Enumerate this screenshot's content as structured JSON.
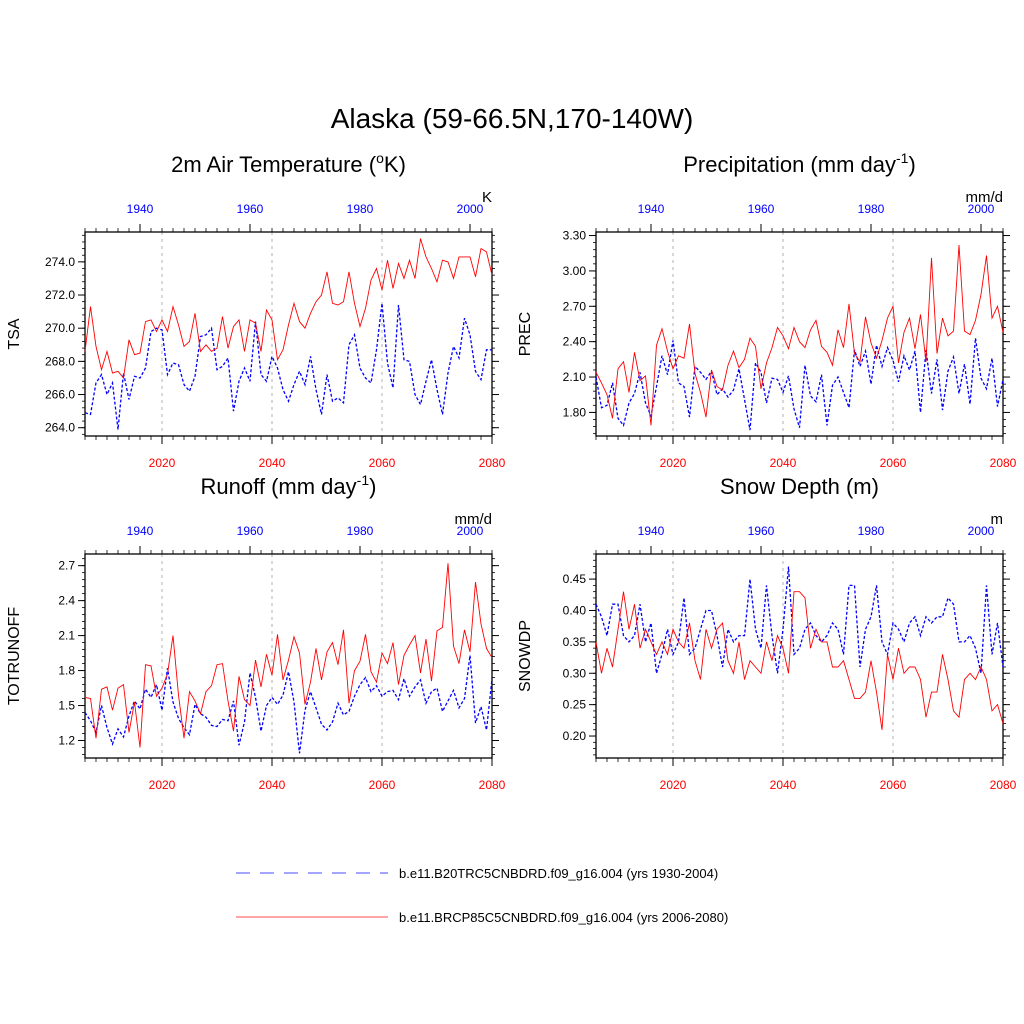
{
  "title": "Alaska (59-66.5N,170-140W)",
  "colors": {
    "historical": "#0000ff",
    "future": "#ff0000",
    "grid": "#b0b0b0"
  },
  "legend": [
    {
      "label": "b.e11.B20TRC5CNBDRD.f09_g16.004 (yrs 1930-2004)",
      "color": "#0000ff",
      "style": "dashed"
    },
    {
      "label": "b.e11.BRCP85C5CNBDRD.f09_g16.004 (yrs 2006-2080)",
      "color": "#ff0000",
      "style": "solid"
    }
  ],
  "chart_data": [
    {
      "type": "line",
      "title": "2m Air Temperature (",
      "title_sup": "o",
      "title_tail": "K)",
      "ylabel": "TSA",
      "units": "K",
      "ylim": [
        263.5,
        275.8
      ],
      "yticks": [
        264.0,
        266.0,
        268.0,
        270.0,
        272.0,
        274.0
      ],
      "ytick_labels": [
        "264.0",
        "266.0",
        "268.0",
        "270.0",
        "272.0",
        "274.0"
      ],
      "x_bottom": {
        "range": [
          2006,
          2080
        ],
        "ticks": [
          2020,
          2040,
          2060,
          2080
        ]
      },
      "x_top": {
        "range": [
          1930,
          2004
        ],
        "ticks": [
          1940,
          1960,
          1980,
          2000
        ]
      },
      "series": [
        {
          "name": "b.e11.B20TRC5CNBDRD.f09_g16.004 (yrs 1930-2004)",
          "key": "historical",
          "values": [
            264.9,
            264.8,
            266.7,
            267.2,
            266.0,
            266.7,
            263.9,
            267.3,
            265.7,
            267.1,
            267.0,
            267.6,
            269.8,
            270.0,
            269.9,
            267.2,
            267.9,
            267.8,
            266.6,
            266.2,
            267.1,
            269.5,
            269.6,
            270.0,
            267.5,
            267.7,
            268.2,
            265.0,
            266.8,
            267.6,
            266.8,
            270.4,
            267.2,
            266.8,
            268.3,
            267.6,
            266.3,
            265.6,
            266.6,
            267.4,
            266.6,
            268.3,
            266.3,
            264.8,
            267.2,
            265.6,
            265.8,
            265.5,
            269.0,
            269.6,
            267.6,
            267.0,
            266.7,
            268.7,
            271.5,
            267.9,
            266.4,
            271.4,
            268.1,
            268.0,
            266.0,
            265.4,
            266.8,
            268.1,
            266.3,
            264.8,
            267.3,
            268.9,
            268.2,
            270.6,
            269.6,
            267.4,
            266.9,
            268.7,
            268.7
          ]
        },
        {
          "name": "b.e11.BRCP85C5CNBDRD.f09_g16.004 (yrs 2006-2080)",
          "key": "future",
          "values": [
            268.6,
            271.3,
            268.9,
            267.5,
            268.6,
            267.3,
            267.4,
            267.0,
            269.3,
            268.4,
            268.5,
            270.4,
            270.5,
            269.8,
            270.5,
            269.8,
            271.3,
            270.2,
            268.9,
            269.2,
            270.9,
            268.6,
            269.0,
            268.6,
            268.8,
            270.7,
            268.8,
            270.1,
            270.5,
            268.6,
            270.5,
            270.3,
            268.6,
            271.1,
            270.5,
            268.1,
            268.7,
            270.2,
            271.5,
            270.4,
            270.0,
            270.9,
            271.6,
            272.0,
            273.4,
            271.5,
            271.4,
            271.6,
            273.4,
            271.5,
            270.1,
            271.2,
            272.9,
            273.6,
            272.3,
            274.1,
            272.4,
            273.9,
            273.0,
            274.1,
            273.0,
            275.4,
            274.3,
            273.6,
            272.8,
            274.1,
            274.0,
            273.0,
            274.3,
            274.3,
            274.3,
            273.1,
            274.8,
            274.6,
            273.2
          ]
        }
      ]
    },
    {
      "type": "line",
      "title": "Precipitation (mm day",
      "title_sup": "-1",
      "title_tail": ")",
      "ylabel": "PREC",
      "units": "mm/d",
      "ylim": [
        1.6,
        3.33
      ],
      "yticks": [
        1.8,
        2.1,
        2.4,
        2.7,
        3.0,
        3.3
      ],
      "ytick_labels": [
        "1.80",
        "2.10",
        "2.40",
        "2.70",
        "3.00",
        "3.30"
      ],
      "x_bottom": {
        "range": [
          2006,
          2080
        ],
        "ticks": [
          2020,
          2040,
          2060,
          2080
        ]
      },
      "x_top": {
        "range": [
          1930,
          2004
        ],
        "ticks": [
          1940,
          1960,
          1980,
          2000
        ]
      },
      "series": [
        {
          "name": "b.e11.B20TRC5CNBDRD.f09_g16.004 (yrs 1930-2004)",
          "key": "historical",
          "values": [
            2.1,
            1.84,
            1.86,
            2.05,
            1.75,
            1.69,
            1.88,
            1.96,
            2.14,
            1.88,
            1.77,
            2.02,
            2.28,
            2.12,
            2.41,
            2.05,
            2.02,
            1.76,
            2.19,
            2.14,
            2.08,
            2.15,
            1.95,
            2.0,
            1.93,
            1.99,
            2.17,
            1.91,
            1.65,
            2.22,
            2.14,
            1.88,
            2.09,
            2.08,
            1.97,
            2.11,
            1.83,
            1.67,
            2.2,
            1.94,
            1.89,
            2.12,
            1.69,
            2.03,
            2.1,
            1.97,
            1.84,
            2.33,
            2.19,
            2.32,
            2.04,
            2.37,
            2.19,
            2.35,
            2.24,
            2.06,
            2.28,
            2.16,
            2.32,
            1.8,
            2.33,
            1.96,
            2.25,
            1.82,
            2.15,
            2.27,
            1.96,
            2.21,
            1.87,
            2.43,
            2.09,
            2.0,
            2.26,
            1.85,
            2.08
          ]
        },
        {
          "name": "b.e11.BRCP85C5CNBDRD.f09_g16.004 (yrs 2006-2080)",
          "key": "future",
          "values": [
            2.14,
            2.05,
            1.95,
            1.75,
            2.17,
            2.23,
            1.97,
            2.31,
            2.07,
            2.11,
            1.69,
            2.37,
            2.51,
            2.32,
            2.17,
            2.28,
            2.26,
            2.55,
            2.13,
            1.97,
            1.76,
            2.16,
            2.02,
            1.99,
            2.2,
            2.32,
            2.18,
            2.25,
            2.43,
            2.36,
            2.0,
            2.22,
            2.35,
            2.52,
            2.45,
            2.34,
            2.52,
            2.4,
            2.35,
            2.5,
            2.58,
            2.36,
            2.31,
            2.2,
            2.5,
            2.35,
            2.72,
            2.3,
            2.23,
            2.61,
            2.39,
            2.26,
            2.41,
            2.6,
            2.7,
            2.22,
            2.48,
            2.6,
            2.34,
            2.63,
            2.23,
            3.11,
            2.3,
            2.6,
            2.45,
            2.49,
            3.22,
            2.49,
            2.46,
            2.58,
            2.8,
            3.13,
            2.6,
            2.7,
            2.48
          ]
        }
      ]
    },
    {
      "type": "line",
      "title": "Runoff (mm day",
      "title_sup": "-1",
      "title_tail": ")",
      "ylabel": "TOTRUNOFF",
      "units": "mm/d",
      "ylim": [
        1.05,
        2.8
      ],
      "yticks": [
        1.2,
        1.5,
        1.8,
        2.1,
        2.4,
        2.7
      ],
      "ytick_labels": [
        "1.2",
        "1.5",
        "1.8",
        "2.1",
        "2.4",
        "2.7"
      ],
      "x_bottom": {
        "range": [
          2006,
          2080
        ],
        "ticks": [
          2020,
          2040,
          2060,
          2080
        ]
      },
      "x_top": {
        "range": [
          1930,
          2004
        ],
        "ticks": [
          1940,
          1960,
          1980,
          2000
        ]
      },
      "series": [
        {
          "name": "b.e11.B20TRC5CNBDRD.f09_g16.004 (yrs 1930-2004)",
          "key": "historical",
          "values": [
            1.44,
            1.37,
            1.27,
            1.5,
            1.31,
            1.17,
            1.3,
            1.23,
            1.41,
            1.54,
            1.47,
            1.64,
            1.57,
            1.68,
            1.46,
            1.82,
            1.53,
            1.39,
            1.31,
            1.25,
            1.51,
            1.43,
            1.4,
            1.33,
            1.32,
            1.38,
            1.37,
            1.54,
            1.16,
            1.36,
            1.78,
            1.57,
            1.28,
            1.5,
            1.57,
            1.51,
            1.59,
            1.79,
            1.53,
            1.09,
            1.46,
            1.62,
            1.48,
            1.34,
            1.29,
            1.36,
            1.52,
            1.42,
            1.45,
            1.58,
            1.68,
            1.74,
            1.62,
            1.67,
            1.58,
            1.62,
            1.63,
            1.55,
            1.73,
            1.58,
            1.66,
            1.72,
            1.52,
            1.62,
            1.65,
            1.45,
            1.54,
            1.63,
            1.48,
            1.56,
            1.93,
            1.35,
            1.49,
            1.29,
            1.73
          ]
        },
        {
          "name": "b.e11.BRCP85C5CNBDRD.f09_g16.004 (yrs 2006-2080)",
          "key": "future",
          "values": [
            1.57,
            1.56,
            1.22,
            1.64,
            1.66,
            1.46,
            1.65,
            1.68,
            1.27,
            1.53,
            1.14,
            1.85,
            1.84,
            1.58,
            1.65,
            1.77,
            2.1,
            1.59,
            1.22,
            1.62,
            1.54,
            1.43,
            1.62,
            1.67,
            1.85,
            1.86,
            1.54,
            1.28,
            1.75,
            1.55,
            1.5,
            1.89,
            1.66,
            1.94,
            1.76,
            2.11,
            1.72,
            1.89,
            2.09,
            1.95,
            1.51,
            1.7,
            1.99,
            1.72,
            1.96,
            2.04,
            1.85,
            2.15,
            1.52,
            1.8,
            1.88,
            2.11,
            1.79,
            1.7,
            1.95,
            1.86,
            2.04,
            1.68,
            1.93,
            2.02,
            2.1,
            1.78,
            2.07,
            1.71,
            2.14,
            2.17,
            2.72,
            2.01,
            1.86,
            2.15,
            1.96,
            2.56,
            2.2,
            1.99,
            1.91
          ]
        }
      ]
    },
    {
      "type": "line",
      "title": "Snow Depth (m)",
      "title_sup": "",
      "title_tail": "",
      "ylabel": "SNOWDP",
      "units": "m",
      "ylim": [
        0.165,
        0.49
      ],
      "yticks": [
        0.2,
        0.25,
        0.3,
        0.35,
        0.4,
        0.45
      ],
      "ytick_labels": [
        "0.20",
        "0.25",
        "0.30",
        "0.35",
        "0.40",
        "0.45"
      ],
      "x_bottom": {
        "range": [
          2006,
          2080
        ],
        "ticks": [
          2020,
          2040,
          2060,
          2080
        ]
      },
      "x_top": {
        "range": [
          1930,
          2004
        ],
        "ticks": [
          1940,
          1960,
          1980,
          2000
        ]
      },
      "series": [
        {
          "name": "b.e11.B20TRC5CNBDRD.f09_g16.004 (yrs 1930-2004)",
          "key": "historical",
          "values": [
            0.41,
            0.39,
            0.36,
            0.41,
            0.41,
            0.36,
            0.35,
            0.36,
            0.41,
            0.35,
            0.38,
            0.3,
            0.33,
            0.37,
            0.33,
            0.35,
            0.42,
            0.33,
            0.34,
            0.37,
            0.4,
            0.4,
            0.36,
            0.31,
            0.37,
            0.35,
            0.36,
            0.36,
            0.45,
            0.37,
            0.34,
            0.44,
            0.36,
            0.3,
            0.37,
            0.47,
            0.33,
            0.34,
            0.37,
            0.38,
            0.36,
            0.35,
            0.36,
            0.38,
            0.37,
            0.33,
            0.44,
            0.44,
            0.31,
            0.37,
            0.39,
            0.44,
            0.35,
            0.33,
            0.38,
            0.37,
            0.35,
            0.38,
            0.39,
            0.36,
            0.39,
            0.38,
            0.39,
            0.39,
            0.42,
            0.41,
            0.35,
            0.35,
            0.36,
            0.34,
            0.3,
            0.44,
            0.33,
            0.38,
            0.31
          ]
        },
        {
          "name": "b.e11.BRCP85C5CNBDRD.f09_g16.004 (yrs 2006-2080)",
          "key": "future",
          "values": [
            0.35,
            0.3,
            0.34,
            0.31,
            0.37,
            0.43,
            0.37,
            0.41,
            0.34,
            0.37,
            0.35,
            0.33,
            0.35,
            0.33,
            0.37,
            0.35,
            0.34,
            0.38,
            0.32,
            0.29,
            0.37,
            0.34,
            0.37,
            0.38,
            0.32,
            0.3,
            0.35,
            0.29,
            0.32,
            0.31,
            0.3,
            0.35,
            0.32,
            0.36,
            0.34,
            0.3,
            0.43,
            0.43,
            0.42,
            0.34,
            0.37,
            0.35,
            0.35,
            0.31,
            0.31,
            0.32,
            0.29,
            0.26,
            0.26,
            0.27,
            0.32,
            0.27,
            0.21,
            0.33,
            0.29,
            0.34,
            0.3,
            0.31,
            0.31,
            0.29,
            0.23,
            0.27,
            0.27,
            0.33,
            0.29,
            0.24,
            0.23,
            0.29,
            0.3,
            0.29,
            0.31,
            0.29,
            0.24,
            0.25,
            0.22
          ]
        }
      ]
    }
  ]
}
